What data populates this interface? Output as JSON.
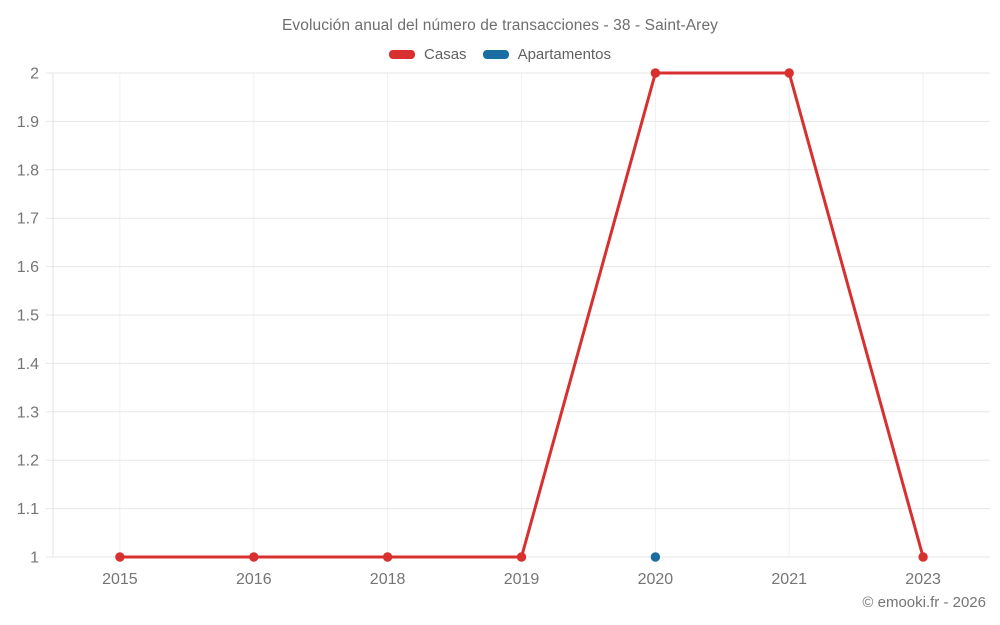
{
  "title": "Evolución anual del número de transacciones - 38 - Saint-Arey",
  "watermark": "© emooki.fr - 2026",
  "legend": [
    {
      "label": "Casas",
      "color": "#d7302f"
    },
    {
      "label": "Apartamentos",
      "color": "#1a6da2"
    }
  ],
  "colors": {
    "grid_horizontal": "#e7e7e7",
    "grid_vertical": "#f1f1f1",
    "axis_line": "#e0e0e0",
    "tick_text": "#757575"
  },
  "chart_data": {
    "type": "line",
    "title": "Evolución anual del número de transacciones - 38 - Saint-Arey",
    "categories": [
      "2015",
      "2016",
      "2018",
      "2019",
      "2020",
      "2021",
      "2023"
    ],
    "series": [
      {
        "name": "Casas",
        "color": "#d7302f",
        "values": [
          1,
          1,
          1,
          1,
          2,
          2,
          1
        ]
      },
      {
        "name": "Apartamentos",
        "color": "#1a6da2",
        "values": [
          null,
          null,
          null,
          null,
          1,
          null,
          null
        ]
      }
    ],
    "xlabel": "",
    "ylabel": "",
    "ylim": [
      1,
      2
    ],
    "yticks": [
      "1",
      "1.1",
      "1.2",
      "1.3",
      "1.4",
      "1.5",
      "1.6",
      "1.7",
      "1.8",
      "1.9",
      "2"
    ],
    "grid": true,
    "legend_position": "top"
  }
}
